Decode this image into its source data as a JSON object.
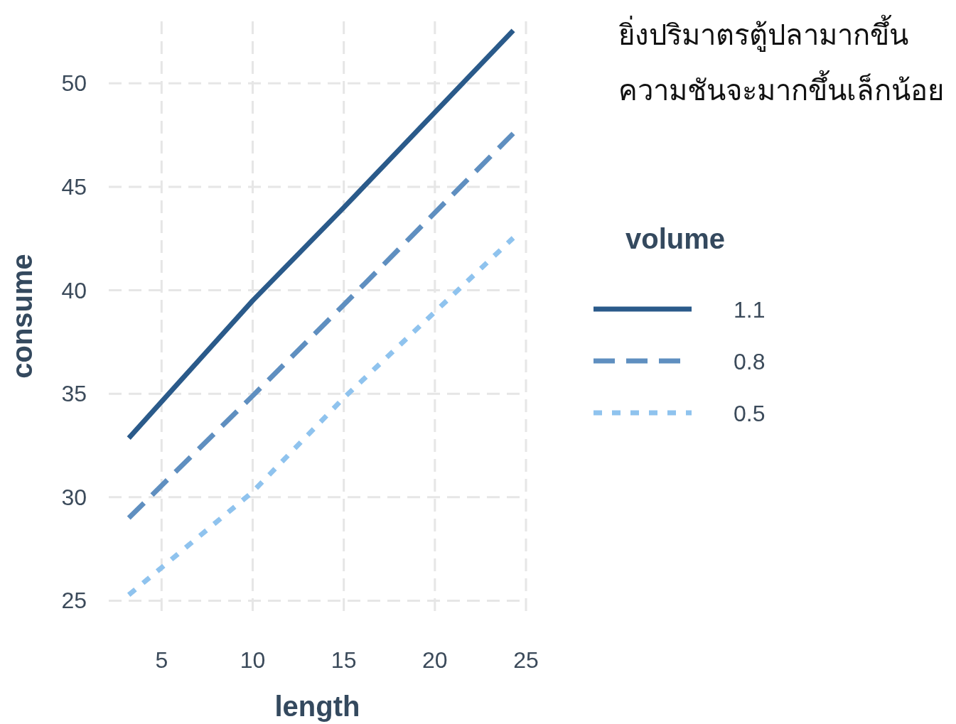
{
  "chart_data": {
    "type": "line",
    "title": "ยิ่งปริมาตรตู้ปลามากขึ้น\nความชันจะมากขึ้นเล็กน้อย",
    "xlabel": "length",
    "ylabel": "consume",
    "legend_title": "volume",
    "legend": "right",
    "grid": true,
    "xlim": [
      2.1,
      25
    ],
    "ylim": [
      24.5,
      53
    ],
    "xticks": [
      5,
      10,
      15,
      20,
      25
    ],
    "yticks": [
      25,
      30,
      35,
      40,
      45,
      50
    ],
    "series": [
      {
        "name": "1.1",
        "color": "#2a5a8a",
        "line_style": "solid",
        "x": [
          3.2,
          10,
          15,
          24.3
        ],
        "values": [
          32.86,
          39.5,
          44.0,
          52.56
        ]
      },
      {
        "name": "0.8",
        "color": "#5f8fc0",
        "line_style": "dashed",
        "x": [
          3.2,
          10,
          15,
          24.3
        ],
        "values": [
          29.0,
          34.9,
          39.3,
          47.58
        ]
      },
      {
        "name": "0.5",
        "color": "#8fc3ee",
        "line_style": "dotted",
        "x": [
          3.2,
          10,
          15,
          24.3
        ],
        "values": [
          25.28,
          30.26,
          34.8,
          42.53
        ]
      }
    ]
  }
}
